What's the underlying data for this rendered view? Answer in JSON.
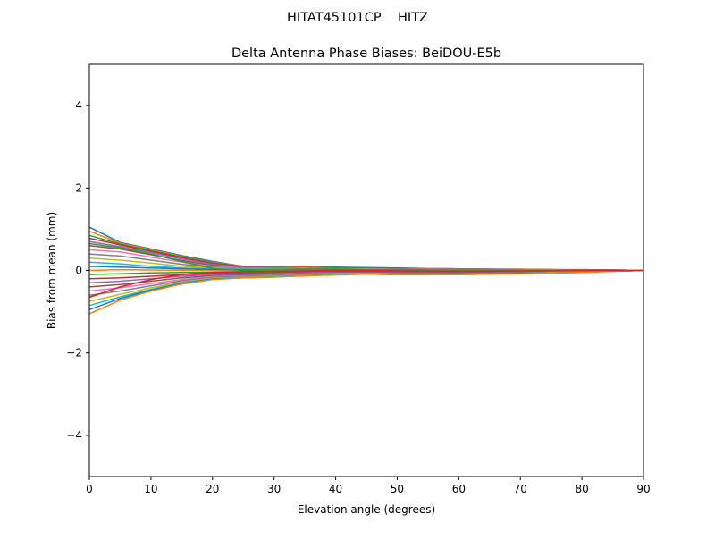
{
  "chart_data": {
    "type": "line",
    "suptitle": "HITAT45101CP    HITZ",
    "title": "Delta Antenna Phase Biases: BeiDOU-E5b",
    "xlabel": "Elevation angle (degrees)",
    "ylabel": "Bias from mean (mm)",
    "xlim": [
      0,
      90
    ],
    "ylim": [
      -5,
      5
    ],
    "xticks": [
      0,
      10,
      20,
      30,
      40,
      50,
      60,
      70,
      80,
      90
    ],
    "yticks": [
      -4,
      -2,
      0,
      2,
      4
    ],
    "ytick_labels": [
      "−4",
      "−2",
      "0",
      "2",
      "4"
    ],
    "grid": false,
    "colors": [
      "#1f77b4",
      "#ff7f0e",
      "#2ca02c",
      "#d62728",
      "#9467bd",
      "#8c564b",
      "#e377c2",
      "#7f7f7f",
      "#bcbd22",
      "#17becf"
    ],
    "x": [
      0,
      5,
      10,
      15,
      20,
      25,
      30,
      35,
      40,
      45,
      50,
      55,
      60,
      65,
      70,
      75,
      80,
      85,
      90
    ],
    "series": [
      {
        "values": [
          1.05,
          0.68,
          0.52,
          0.36,
          0.22,
          0.1,
          0.09,
          0.08,
          0.08,
          0.07,
          0.06,
          0.05,
          0.04,
          0.03,
          0.03,
          0.02,
          0.02,
          0.01,
          0
        ]
      },
      {
        "values": [
          0.95,
          0.66,
          0.5,
          0.34,
          0.2,
          0.1,
          0.08,
          0.08,
          0.07,
          0.06,
          0.05,
          0.05,
          0.04,
          0.03,
          0.03,
          0.02,
          0.02,
          0.01,
          0
        ]
      },
      {
        "values": [
          0.85,
          0.64,
          0.48,
          0.33,
          0.19,
          0.09,
          0.08,
          0.07,
          0.07,
          0.06,
          0.05,
          0.04,
          0.04,
          0.03,
          0.02,
          0.02,
          0.01,
          0.01,
          0
        ]
      },
      {
        "values": [
          0.78,
          0.62,
          0.46,
          0.31,
          0.17,
          0.09,
          0.07,
          0.07,
          0.06,
          0.06,
          0.05,
          0.04,
          0.03,
          0.03,
          0.02,
          0.02,
          0.01,
          0.01,
          0
        ]
      },
      {
        "values": [
          0.7,
          0.58,
          0.43,
          0.28,
          0.15,
          0.08,
          0.07,
          0.06,
          0.06,
          0.05,
          0.04,
          0.04,
          0.03,
          0.03,
          0.02,
          0.01,
          0.01,
          0.0,
          0
        ]
      },
      {
        "values": [
          0.6,
          0.52,
          0.38,
          0.24,
          0.12,
          0.07,
          0.06,
          0.05,
          0.05,
          0.04,
          0.04,
          0.03,
          0.03,
          0.02,
          0.02,
          0.01,
          0.01,
          0.0,
          0
        ]
      },
      {
        "values": [
          0.5,
          0.45,
          0.32,
          0.2,
          0.1,
          0.06,
          0.05,
          0.05,
          0.04,
          0.04,
          0.03,
          0.03,
          0.02,
          0.02,
          0.01,
          0.01,
          0.01,
          0.0,
          0
        ]
      },
      {
        "values": [
          0.4,
          0.35,
          0.25,
          0.15,
          0.08,
          0.05,
          0.04,
          0.04,
          0.04,
          0.03,
          0.03,
          0.02,
          0.02,
          0.02,
          0.01,
          0.01,
          0.0,
          0.0,
          0
        ]
      },
      {
        "values": [
          0.3,
          0.25,
          0.18,
          0.1,
          0.06,
          0.04,
          0.04,
          0.03,
          0.03,
          0.03,
          0.02,
          0.02,
          0.02,
          0.01,
          0.01,
          0.01,
          0.0,
          0.0,
          0
        ]
      },
      {
        "values": [
          0.2,
          0.16,
          0.1,
          0.06,
          0.04,
          0.03,
          0.03,
          0.03,
          0.02,
          0.02,
          0.02,
          0.01,
          0.01,
          0.01,
          0.01,
          0.0,
          0.0,
          0.0,
          0
        ]
      },
      {
        "values": [
          0.1,
          0.08,
          0.06,
          0.04,
          0.02,
          0.02,
          0.02,
          0.02,
          0.01,
          0.01,
          0.01,
          0.01,
          0.0,
          0.0,
          0.0,
          0.0,
          0.0,
          0.0,
          0
        ]
      },
      {
        "values": [
          0.0,
          0.02,
          0.01,
          0.0,
          -0.01,
          -0.02,
          -0.02,
          -0.02,
          -0.01,
          -0.01,
          -0.02,
          -0.02,
          -0.02,
          -0.02,
          -0.01,
          -0.01,
          -0.01,
          0.0,
          0
        ]
      },
      {
        "values": [
          -0.1,
          -0.08,
          -0.06,
          -0.05,
          -0.05,
          -0.05,
          -0.04,
          -0.03,
          -0.02,
          -0.02,
          -0.03,
          -0.04,
          -0.04,
          -0.03,
          -0.03,
          -0.02,
          -0.01,
          -0.01,
          0
        ]
      },
      {
        "values": [
          -0.2,
          -0.18,
          -0.14,
          -0.1,
          -0.08,
          -0.07,
          -0.06,
          -0.05,
          -0.04,
          -0.04,
          -0.05,
          -0.05,
          -0.05,
          -0.04,
          -0.03,
          -0.03,
          -0.02,
          -0.01,
          0
        ]
      },
      {
        "values": [
          -0.3,
          -0.26,
          -0.2,
          -0.14,
          -0.1,
          -0.09,
          -0.08,
          -0.06,
          -0.05,
          -0.05,
          -0.06,
          -0.06,
          -0.06,
          -0.05,
          -0.04,
          -0.03,
          -0.02,
          -0.01,
          0
        ]
      },
      {
        "values": [
          -0.4,
          -0.34,
          -0.26,
          -0.18,
          -0.13,
          -0.11,
          -0.1,
          -0.08,
          -0.06,
          -0.06,
          -0.07,
          -0.07,
          -0.07,
          -0.06,
          -0.05,
          -0.04,
          -0.03,
          -0.01,
          0
        ]
      },
      {
        "values": [
          -0.5,
          -0.42,
          -0.32,
          -0.22,
          -0.15,
          -0.13,
          -0.11,
          -0.09,
          -0.07,
          -0.07,
          -0.08,
          -0.08,
          -0.08,
          -0.07,
          -0.06,
          -0.04,
          -0.03,
          -0.02,
          0
        ]
      },
      {
        "values": [
          -0.6,
          -0.5,
          -0.37,
          -0.25,
          -0.17,
          -0.14,
          -0.12,
          -0.1,
          -0.08,
          -0.08,
          -0.09,
          -0.09,
          -0.08,
          -0.07,
          -0.06,
          -0.05,
          -0.04,
          -0.02,
          0
        ]
      },
      {
        "values": [
          -0.75,
          -0.58,
          -0.42,
          -0.28,
          -0.19,
          -0.16,
          -0.14,
          -0.11,
          -0.09,
          -0.08,
          -0.09,
          -0.09,
          -0.09,
          -0.08,
          -0.07,
          -0.05,
          -0.04,
          -0.02,
          0
        ]
      },
      {
        "values": [
          -0.85,
          -0.64,
          -0.46,
          -0.3,
          -0.2,
          -0.17,
          -0.15,
          -0.12,
          -0.1,
          -0.09,
          -0.1,
          -0.1,
          -0.09,
          -0.08,
          -0.07,
          -0.06,
          -0.04,
          -0.02,
          0
        ]
      },
      {
        "values": [
          -0.95,
          -0.68,
          -0.48,
          -0.32,
          -0.21,
          -0.18,
          -0.16,
          -0.13,
          -0.1,
          -0.09,
          -0.1,
          -0.1,
          -0.1,
          -0.09,
          -0.07,
          -0.06,
          -0.05,
          -0.02,
          0
        ]
      },
      {
        "values": [
          -1.05,
          -0.72,
          -0.5,
          -0.33,
          -0.22,
          -0.18,
          -0.16,
          -0.13,
          -0.11,
          -0.09,
          -0.1,
          -0.1,
          -0.1,
          -0.09,
          -0.08,
          -0.06,
          -0.05,
          -0.02,
          0
        ]
      },
      {
        "values": [
          0.65,
          0.55,
          0.4,
          0.22,
          0.05,
          0.0,
          0.02,
          0.03,
          0.03,
          0.02,
          0.02,
          0.01,
          0.01,
          0.01,
          0.0,
          0.0,
          0.0,
          0.0,
          0
        ]
      },
      {
        "values": [
          -0.65,
          -0.4,
          -0.22,
          -0.1,
          -0.05,
          -0.03,
          -0.02,
          -0.01,
          0.0,
          0.0,
          -0.01,
          -0.02,
          -0.02,
          -0.02,
          -0.01,
          -0.01,
          0.0,
          0.0,
          0
        ]
      }
    ]
  }
}
